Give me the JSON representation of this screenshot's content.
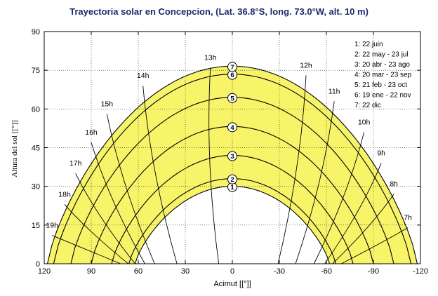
{
  "chart_data": {
    "type": "line",
    "title": "Trayectoria solar en  Concepcion, (Lat. 36.8°S, long. 73.0°W, alt. 10 m)",
    "xlabel": "Acimut [[°]]",
    "ylabel": "Altura del sol [[°]]",
    "xlim": [
      120,
      -120
    ],
    "ylim": [
      0,
      90
    ],
    "xticks": [
      120,
      90,
      60,
      30,
      0,
      -30,
      -60,
      -90,
      -120
    ],
    "yticks": [
      0,
      15,
      30,
      45,
      60,
      75,
      90
    ],
    "band_color": "#f7f46a",
    "curve_color": "#000000",
    "hour_labels": [
      {
        "label": "7h",
        "az": -112,
        "alt": 17
      },
      {
        "label": "8h",
        "az": -103,
        "alt": 30
      },
      {
        "label": "9h",
        "az": -95,
        "alt": 42
      },
      {
        "label": "10h",
        "az": -84,
        "alt": 54
      },
      {
        "label": "11h",
        "az": -65,
        "alt": 66
      },
      {
        "label": "12h",
        "az": -47,
        "alt": 76
      },
      {
        "label": "13h",
        "az": 14,
        "alt": 79
      },
      {
        "label": "14h",
        "az": 57,
        "alt": 72
      },
      {
        "label": "15h",
        "az": 80,
        "alt": 61
      },
      {
        "label": "16h",
        "az": 90,
        "alt": 50
      },
      {
        "label": "17h",
        "az": 100,
        "alt": 38
      },
      {
        "label": "18h",
        "az": 107,
        "alt": 26
      },
      {
        "label": "19h",
        "az": 115,
        "alt": 14
      }
    ],
    "series": [
      {
        "name": "1: 22.juin",
        "num": "1",
        "max_alt": 30,
        "sunset_az": 62
      },
      {
        "name": "2: 22 may - 23 jul",
        "num": "2",
        "max_alt": 33,
        "sunset_az": 66
      },
      {
        "name": "3: 20 abr - 23 ago",
        "num": "3",
        "max_alt": 42,
        "sunset_az": 77
      },
      {
        "name": "4: 20 mar - 23 sep",
        "num": "4",
        "max_alt": 53.2,
        "sunset_az": 90
      },
      {
        "name": "5: 21 feb - 23 oct",
        "num": "5",
        "max_alt": 64.5,
        "sunset_az": 103
      },
      {
        "name": "6: 19 ene - 22 nov",
        "num": "6",
        "max_alt": 73.5,
        "sunset_az": 114
      },
      {
        "name": "7: 22 dic",
        "num": "7",
        "max_alt": 76.6,
        "sunset_az": 118
      }
    ]
  }
}
